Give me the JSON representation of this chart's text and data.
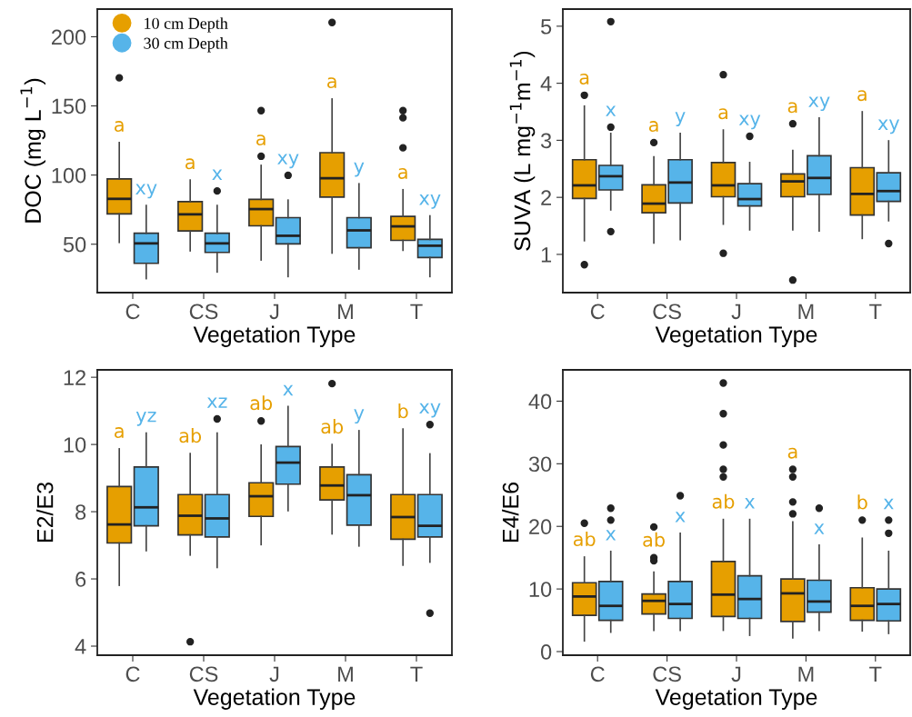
{
  "chart_data": [
    {
      "type": "box",
      "xlabel": "Vegetation Type",
      "ylabel": "DOC (mg L$^{−1}$)",
      "categories": [
        "C",
        "CS",
        "J",
        "M",
        "T"
      ],
      "ylim": [
        15,
        220
      ],
      "yticks": [
        50,
        100,
        150,
        200
      ],
      "legend": "top left",
      "grid": false,
      "marker": "circle",
      "series": [
        {
          "name": "10 cm Depth",
          "color": "#e69f00",
          "value_labels": [
            "a",
            "a",
            "a",
            "a",
            "a"
          ],
          "boxes": [
            {
              "low": 51.3,
              "q1": 71.9,
              "median": 82.8,
              "q3": 97.2,
              "high": 123.5,
              "outliers": [
                170.3
              ]
            },
            {
              "low": 45.2,
              "q1": 59.6,
              "median": 71.6,
              "q3": 80.8,
              "high": 96.4
            },
            {
              "low": 38.6,
              "q1": 63.3,
              "median": 75.4,
              "q3": 82.4,
              "high": 107,
              "outliers": [
                113.6,
                146.6
              ]
            },
            {
              "low": 43.6,
              "q1": 84.1,
              "median": 97.7,
              "q3": 116.2,
              "high": 155,
              "outliers": [
                210.3
              ]
            },
            {
              "low": 45.6,
              "q1": 52.8,
              "median": 62.9,
              "q3": 70.1,
              "high": 89.4,
              "outliers": [
                119.7,
                141.4,
                146.6
              ]
            }
          ]
        },
        {
          "name": "30 cm Depth",
          "color": "#56b4e9",
          "value_labels": [
            "xy",
            "x",
            "xy",
            "y",
            "xy"
          ],
          "boxes": [
            {
              "low": 25.1,
              "q1": 36.2,
              "median": 50.6,
              "q3": 57.9,
              "high": 78
            },
            {
              "low": 29.9,
              "q1": 44.1,
              "median": 50.6,
              "q3": 57.9,
              "high": 78,
              "outliers": [
                88.5
              ]
            },
            {
              "low": 26.6,
              "q1": 50.2,
              "median": 56.1,
              "q3": 69.2,
              "high": 81.9,
              "outliers": [
                99.8
              ]
            },
            {
              "low": 32.1,
              "q1": 47.4,
              "median": 60,
              "q3": 69.2,
              "high": 93.7
            },
            {
              "low": 26.6,
              "q1": 40.4,
              "median": 48.9,
              "q3": 53.5,
              "high": 70.5
            }
          ]
        }
      ]
    },
    {
      "type": "box",
      "xlabel": "Vegetation Type",
      "ylabel": "SUVA (L mg$^{−1}$m$^{−1}$)",
      "categories": [
        "C",
        "CS",
        "J",
        "M",
        "T"
      ],
      "ylim": [
        0.33,
        5.3
      ],
      "yticks": [
        1,
        2,
        3,
        4,
        5
      ],
      "grid": false,
      "series": [
        {
          "color": "#e69f00",
          "value_labels": [
            "a",
            "a",
            "a",
            "a",
            "a"
          ],
          "boxes": [
            {
              "low": 1.24,
              "q1": 1.98,
              "median": 2.21,
              "q3": 2.66,
              "high": 3.6,
              "outliers": [
                3.79,
                0.82
              ]
            },
            {
              "low": 1.2,
              "q1": 1.73,
              "median": 1.89,
              "q3": 2.22,
              "high": 2.71,
              "outliers": [
                2.96
              ]
            },
            {
              "low": 1.53,
              "q1": 2.01,
              "median": 2.21,
              "q3": 2.61,
              "high": 3.18,
              "outliers": [
                4.15,
                1.02
              ]
            },
            {
              "low": 1.43,
              "q1": 2.01,
              "median": 2.28,
              "q3": 2.41,
              "high": 2.82,
              "outliers": [
                3.29,
                0.55
              ]
            },
            {
              "low": 1.28,
              "q1": 1.69,
              "median": 2.06,
              "q3": 2.52,
              "high": 3.5
            }
          ]
        },
        {
          "color": "#56b4e9",
          "value_labels": [
            "x",
            "y",
            "xy",
            "xy",
            "xy"
          ],
          "boxes": [
            {
              "low": 1.78,
              "q1": 2.13,
              "median": 2.37,
              "q3": 2.56,
              "high": 3.12,
              "outliers": [
                5.08,
                3.23,
                1.4
              ]
            },
            {
              "low": 1.26,
              "q1": 1.9,
              "median": 2.26,
              "q3": 2.66,
              "high": 3.12
            },
            {
              "low": 1.43,
              "q1": 1.85,
              "median": 1.97,
              "q3": 2.24,
              "high": 2.61,
              "outliers": [
                3.07
              ]
            },
            {
              "low": 1.41,
              "q1": 2.05,
              "median": 2.34,
              "q3": 2.73,
              "high": 3.39
            },
            {
              "low": 1.59,
              "q1": 1.93,
              "median": 2.11,
              "q3": 2.43,
              "high": 2.99,
              "outliers": [
                1.19
              ]
            }
          ]
        }
      ]
    },
    {
      "type": "box",
      "xlabel": "Vegetation Type",
      "ylabel": "E2/E3",
      "categories": [
        "C",
        "CS",
        "J",
        "M",
        "T"
      ],
      "ylim": [
        3.73,
        12.22
      ],
      "yticks": [
        4,
        6,
        8,
        10,
        12
      ],
      "grid": false,
      "series": [
        {
          "color": "#e69f00",
          "value_labels": [
            "a",
            "ab",
            "ab",
            "ab",
            "b"
          ],
          "boxes": [
            {
              "low": 5.81,
              "q1": 7.07,
              "median": 7.62,
              "q3": 8.75,
              "high": 9.87
            },
            {
              "low": 6.71,
              "q1": 7.31,
              "median": 7.88,
              "q3": 8.51,
              "high": 9.73,
              "outliers": [
                4.13
              ]
            },
            {
              "low": 7.02,
              "q1": 7.86,
              "median": 8.46,
              "q3": 8.86,
              "high": 9.98,
              "outliers": [
                10.7
              ]
            },
            {
              "low": 7.34,
              "q1": 8.35,
              "median": 8.78,
              "q3": 9.33,
              "high": 10.0,
              "outliers": [
                11.81
              ]
            },
            {
              "low": 6.41,
              "q1": 7.18,
              "median": 7.84,
              "q3": 8.51,
              "high": 10.46
            }
          ]
        },
        {
          "color": "#56b4e9",
          "value_labels": [
            "yz",
            "xz",
            "x",
            "y",
            "xy"
          ],
          "boxes": [
            {
              "low": 6.84,
              "q1": 7.58,
              "median": 8.13,
              "q3": 9.33,
              "high": 10.34
            },
            {
              "low": 6.34,
              "q1": 7.25,
              "median": 7.8,
              "q3": 8.51,
              "high": 10.34,
              "outliers": [
                10.76
              ]
            },
            {
              "low": 8.03,
              "q1": 8.82,
              "median": 9.46,
              "q3": 9.94,
              "high": 11.13
            },
            {
              "low": 6.98,
              "q1": 7.6,
              "median": 8.49,
              "q3": 9.1,
              "high": 10.41
            },
            {
              "low": 6.5,
              "q1": 7.25,
              "median": 7.58,
              "q3": 8.51,
              "high": 9.72,
              "outliers": [
                10.59,
                4.98
              ]
            }
          ]
        }
      ]
    },
    {
      "type": "box",
      "xlabel": "Vegetation Type",
      "ylabel": "E4/E6",
      "categories": [
        "C",
        "CS",
        "J",
        "M",
        "T"
      ],
      "ylim": [
        -0.58,
        45
      ],
      "yticks": [
        0,
        10,
        20,
        30,
        40
      ],
      "grid": false,
      "series": [
        {
          "color": "#e69f00",
          "value_labels": [
            "ab",
            "ab",
            "ab",
            "a",
            "b"
          ],
          "boxes": [
            {
              "low": 1.7,
              "q1": 5.8,
              "median": 8.8,
              "q3": 11.0,
              "high": 15.1,
              "outliers": [
                20.5
              ]
            },
            {
              "low": 3.4,
              "q1": 6.0,
              "median": 8.1,
              "q3": 9.2,
              "high": 12.7,
              "outliers": [
                19.9,
                15.0,
                14.5
              ]
            },
            {
              "low": 3.4,
              "q1": 5.6,
              "median": 9.1,
              "q3": 14.4,
              "high": 21.1,
              "outliers": [
                42.9,
                38.0,
                33.0,
                29.1,
                27.9
              ]
            },
            {
              "low": 2.2,
              "q1": 4.8,
              "median": 9.3,
              "q3": 11.6,
              "high": 20.7,
              "outliers": [
                22.0,
                23.9,
                29.1,
                27.9
              ]
            },
            {
              "low": 3.3,
              "q1": 5.0,
              "median": 7.3,
              "q3": 10.2,
              "high": 18.1,
              "outliers": [
                21.0
              ]
            }
          ]
        },
        {
          "color": "#56b4e9",
          "value_labels": [
            "x",
            "x",
            "x",
            "x",
            "x"
          ],
          "boxes": [
            {
              "low": 3.1,
              "q1": 5.0,
              "median": 7.3,
              "q3": 11.2,
              "high": 16.0,
              "outliers": [
                22.9,
                21.0
              ]
            },
            {
              "low": 3.4,
              "q1": 5.3,
              "median": 7.6,
              "q3": 11.2,
              "high": 18.9,
              "outliers": [
                24.9
              ]
            },
            {
              "low": 2.6,
              "q1": 5.3,
              "median": 8.4,
              "q3": 12.1,
              "high": 21.1
            },
            {
              "low": 3.4,
              "q1": 6.3,
              "median": 8.0,
              "q3": 11.4,
              "high": 17.0,
              "outliers": [
                22.9
              ]
            },
            {
              "low": 2.9,
              "q1": 4.9,
              "median": 7.6,
              "q3": 10.0,
              "high": 16.0,
              "outliers": [
                21.0,
                18.9
              ]
            }
          ]
        }
      ]
    }
  ]
}
